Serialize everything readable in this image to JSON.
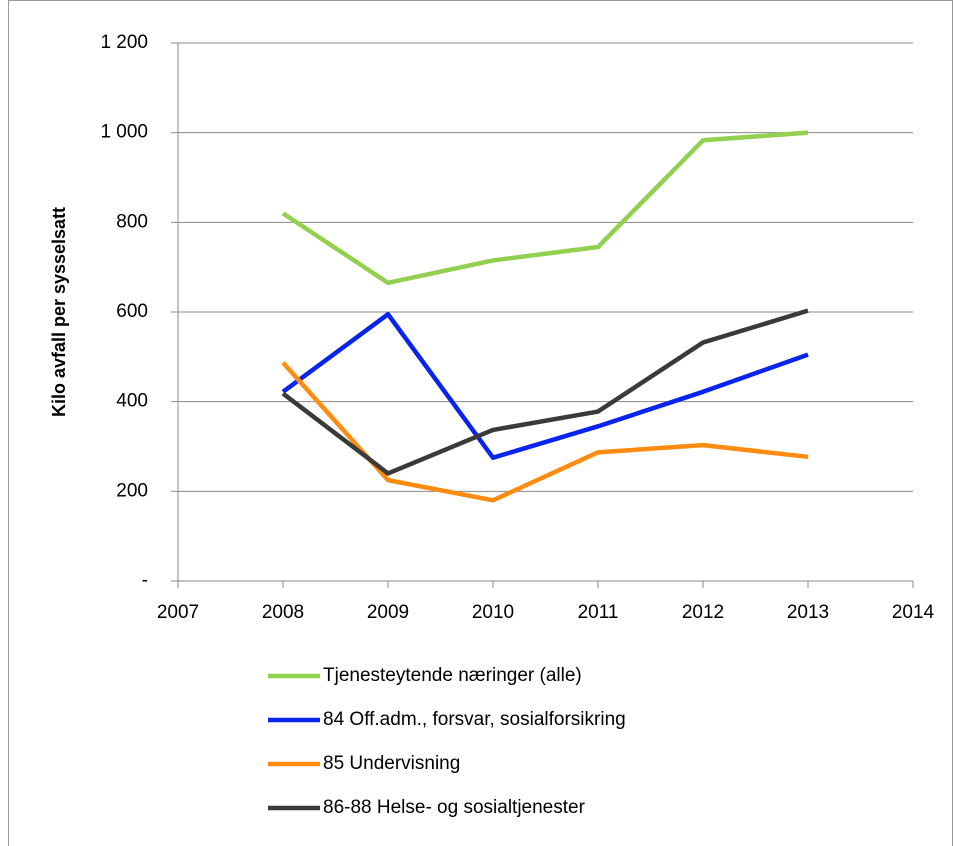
{
  "chart_data": {
    "type": "line",
    "y_label": "Kilo avfall per sysselsatt",
    "x": [
      2008,
      2009,
      2010,
      2011,
      2012,
      2013
    ],
    "series": [
      {
        "name": "Tjenesteytende næringer (alle)",
        "color": "#92d050",
        "values": [
          820,
          665,
          715,
          745,
          983,
          1000
        ]
      },
      {
        "name": "84 Off.adm., forsvar, sosialforsikring",
        "color": "#0a24f0",
        "values": [
          422,
          595,
          275,
          345,
          422,
          505
        ]
      },
      {
        "name": "85 Undervisning",
        "color": "#ff8c10",
        "values": [
          487,
          225,
          180,
          287,
          303,
          277
        ]
      },
      {
        "name": "86-88 Helse- og sosialtjenester",
        "color": "#3a3a3a",
        "values": [
          418,
          240,
          337,
          378,
          532,
          603
        ]
      }
    ],
    "xlim": [
      2007,
      2014
    ],
    "xticks": [
      2007,
      2008,
      2009,
      2010,
      2011,
      2012,
      2013,
      2014
    ],
    "ylim": [
      0,
      1200
    ],
    "yticks": [
      {
        "value": 0,
        "label": "-"
      },
      200,
      400,
      600,
      800,
      {
        "value": 1000,
        "label": "1 000"
      },
      {
        "value": 1200,
        "label": "1 200"
      }
    ],
    "grid": true,
    "legend": "bottom"
  }
}
